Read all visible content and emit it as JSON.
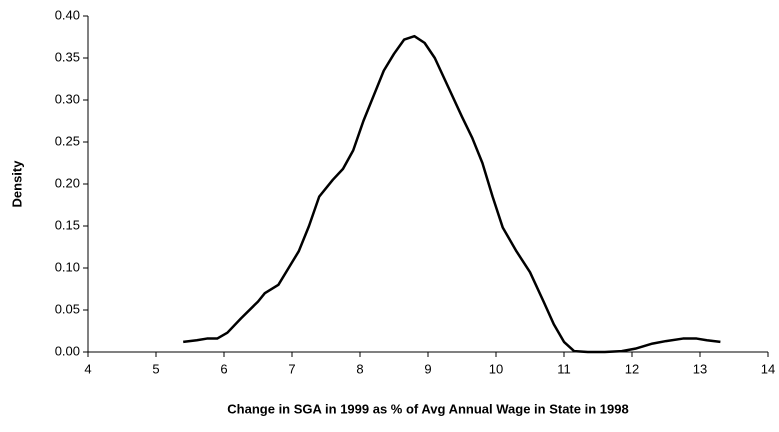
{
  "chart_data": {
    "type": "line",
    "x_label": "Change in SGA in 1999 as % of Avg Annual Wage in State in 1998",
    "y_label": "Density",
    "x": [
      5.4,
      5.6,
      5.75,
      5.9,
      6.05,
      6.25,
      6.5,
      6.6,
      6.8,
      6.95,
      7.1,
      7.25,
      7.4,
      7.6,
      7.75,
      7.9,
      8.05,
      8.2,
      8.35,
      8.5,
      8.65,
      8.8,
      8.95,
      9.1,
      9.3,
      9.5,
      9.65,
      9.8,
      9.95,
      10.1,
      10.3,
      10.5,
      10.7,
      10.85,
      11.0,
      11.15,
      11.35,
      11.6,
      11.85,
      12.05,
      12.3,
      12.5,
      12.75,
      12.95,
      13.1,
      13.3
    ],
    "values": [
      0.012,
      0.014,
      0.016,
      0.016,
      0.023,
      0.04,
      0.06,
      0.07,
      0.08,
      0.1,
      0.12,
      0.15,
      0.185,
      0.205,
      0.218,
      0.24,
      0.275,
      0.305,
      0.335,
      0.355,
      0.372,
      0.376,
      0.368,
      0.35,
      0.315,
      0.28,
      0.255,
      0.225,
      0.185,
      0.148,
      0.12,
      0.095,
      0.06,
      0.033,
      0.012,
      0.001,
      0,
      0,
      0.001,
      0.004,
      0.01,
      0.013,
      0.016,
      0.016,
      0.014,
      0.012
    ],
    "color": "#000000",
    "xlim": [
      4,
      14
    ],
    "xticks": [
      4,
      5,
      6,
      7,
      8,
      9,
      10,
      11,
      12,
      13,
      14
    ],
    "ylim": [
      0,
      0.4
    ],
    "yticks": [
      {
        "value": 0,
        "label": "0.00"
      },
      0.05,
      {
        "value": 0.1,
        "label": "0.10"
      },
      0.15,
      {
        "value": 0.2,
        "label": "0.20"
      },
      0.25,
      {
        "value": 0.3,
        "label": "0.30"
      },
      0.35,
      {
        "value": 0.4,
        "label": "0.40"
      }
    ],
    "grid": false
  }
}
